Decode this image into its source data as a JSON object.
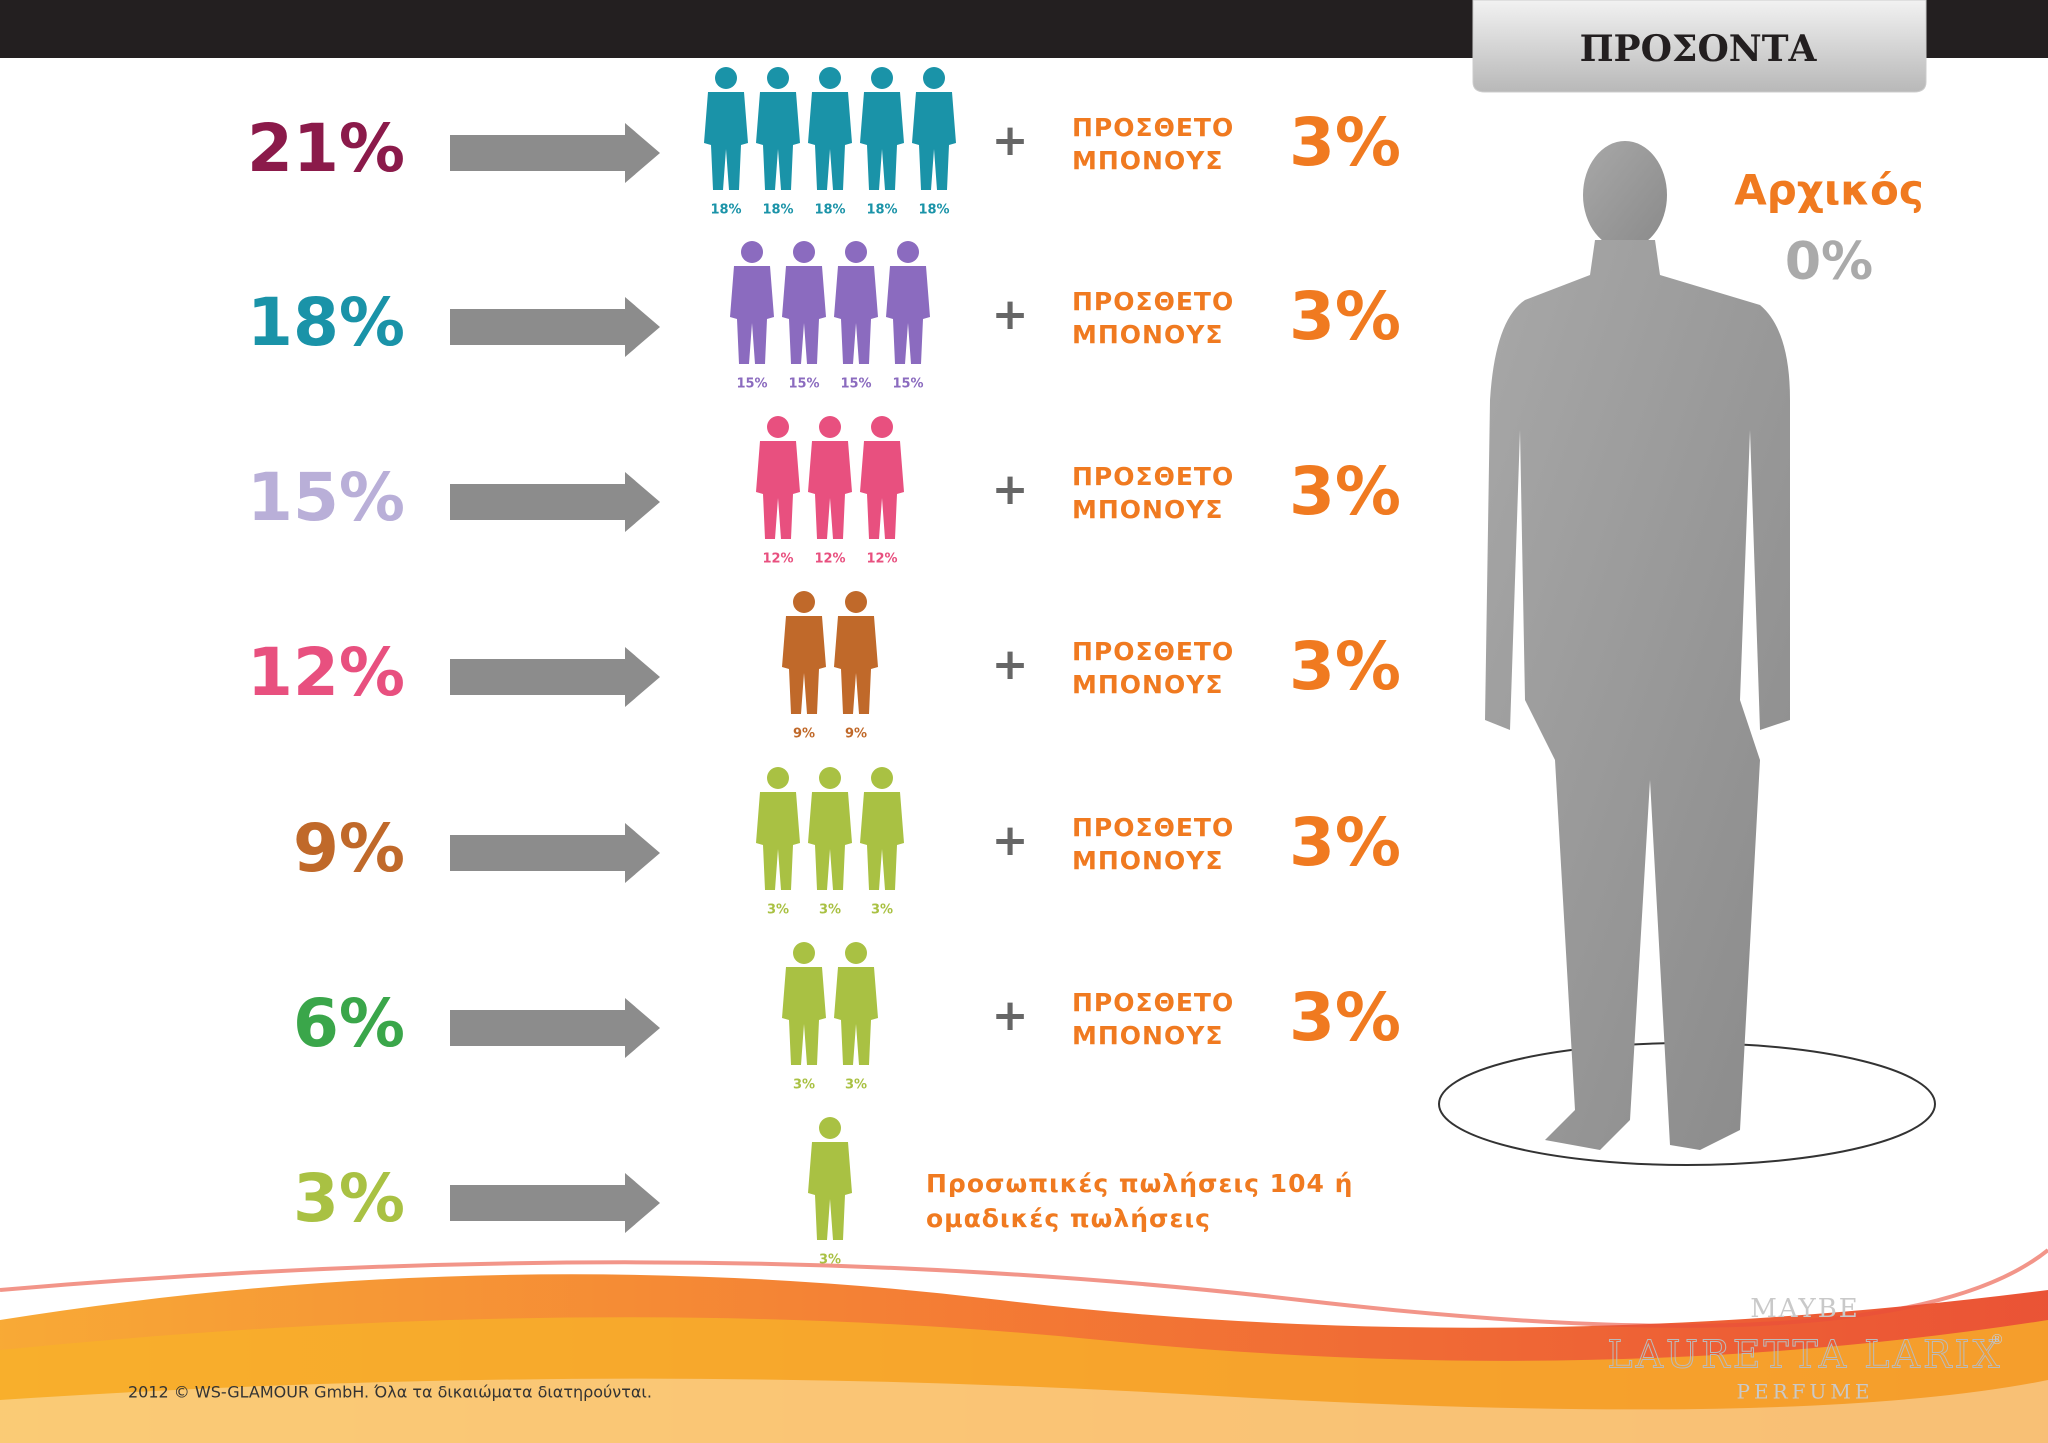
{
  "header": {
    "title": "ΠΡΟΣΟΝΤΑ"
  },
  "rows": [
    {
      "level": "21%",
      "level_color": "#8b1a4a",
      "figure_color": "#1a93a8",
      "figures": [
        "18%",
        "18%",
        "18%",
        "18%",
        "18%"
      ],
      "plus": "+",
      "bonus_label": [
        "ΠΡΟΣΘΕΤΟ",
        "ΜΠΟΝΟΥΣ"
      ],
      "bonus": "3%"
    },
    {
      "level": "18%",
      "level_color": "#1a93a8",
      "figure_color": "#8b6bbf",
      "figures": [
        "15%",
        "15%",
        "15%",
        "15%"
      ],
      "plus": "+",
      "bonus_label": [
        "ΠΡΟΣΘΕΤΟ",
        "ΜΠΟΝΟΥΣ"
      ],
      "bonus": "3%"
    },
    {
      "level": "15%",
      "level_color": "#b9afd8",
      "figure_color": "#e8507f",
      "figures": [
        "12%",
        "12%",
        "12%"
      ],
      "plus": "+",
      "bonus_label": [
        "ΠΡΟΣΘΕΤΟ",
        "ΜΠΟΝΟΥΣ"
      ],
      "bonus": "3%"
    },
    {
      "level": "12%",
      "level_color": "#e8507f",
      "figure_color": "#c0692a",
      "figures": [
        "9%",
        "9%"
      ],
      "plus": "+",
      "bonus_label": [
        "ΠΡΟΣΘΕΤΟ",
        "ΜΠΟΝΟΥΣ"
      ],
      "bonus": "3%"
    },
    {
      "level": "9%",
      "level_color": "#c0692a",
      "figure_color": "#a9c143",
      "figures": [
        "3%",
        "3%",
        "3%"
      ],
      "plus": "+",
      "bonus_label": [
        "ΠΡΟΣΘΕΤΟ",
        "ΜΠΟΝΟΥΣ"
      ],
      "bonus": "3%"
    },
    {
      "level": "6%",
      "level_color": "#3aa64a",
      "figure_color": "#a9c143",
      "figures": [
        "3%",
        "3%"
      ],
      "plus": "+",
      "bonus_label": [
        "ΠΡΟΣΘΕΤΟ",
        "ΜΠΟΝΟΥΣ"
      ],
      "bonus": "3%"
    },
    {
      "level": "3%",
      "level_color": "#a9c143",
      "figure_color": "#a9c143",
      "figures": [
        "3%"
      ],
      "note": [
        "Προσωπικές πωλήσεις 104 ή",
        "ομαδικές πωλήσεις"
      ]
    }
  ],
  "start": {
    "label": "Αρχικός",
    "value": "0%"
  },
  "footer": {
    "copyright": "2012 © WS-GLAMOUR GmbH. Όλα τα δικαιώματα διατηρούνται.",
    "logo_top": "MAYBE",
    "logo_name": "LAURETTA LARIX",
    "logo_mark": "®",
    "logo_sub": "PERFUME"
  }
}
